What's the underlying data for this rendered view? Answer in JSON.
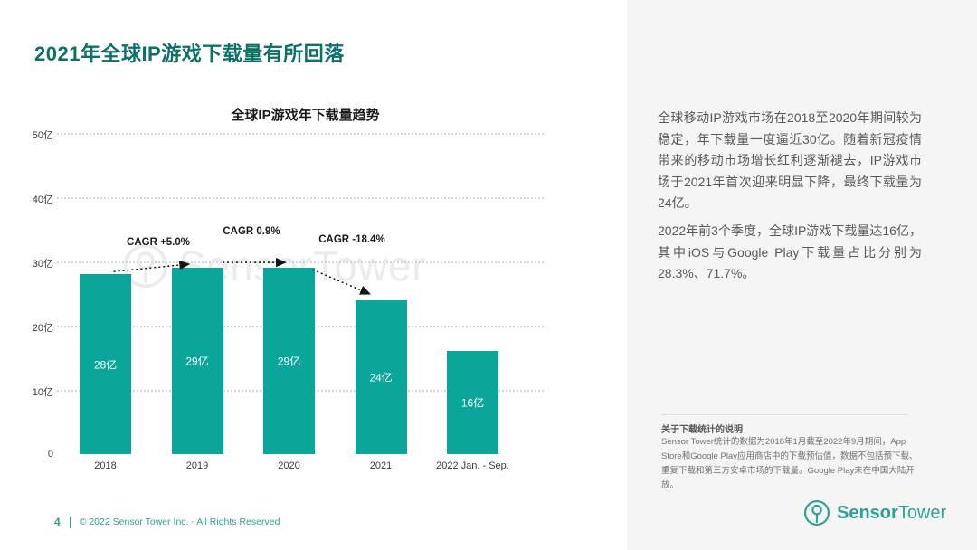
{
  "page": {
    "title": "2021年全球IP游戏下载量有所回落",
    "footer": {
      "page_number": "4",
      "copyright": "© 2022 Sensor Tower Inc. - All Rights Reserved"
    }
  },
  "chart_data": {
    "type": "bar",
    "title": "全球IP游戏年下载量趋势",
    "categories": [
      "2018",
      "2019",
      "2020",
      "2021",
      "2022 Jan. - Sep."
    ],
    "values": [
      28,
      29,
      29,
      24,
      16
    ],
    "bar_labels": [
      "28亿",
      "29亿",
      "29亿",
      "24亿",
      "16亿"
    ],
    "unit": "亿",
    "ylim": [
      0,
      50
    ],
    "ytick_step": 10,
    "ytick_labels": [
      "0",
      "10亿",
      "20亿",
      "30亿",
      "40亿",
      "50亿"
    ],
    "annotations": [
      {
        "label": "CAGR +5.0%",
        "between": [
          "2018",
          "2019"
        ]
      },
      {
        "label": "CAGR 0.9%",
        "between": [
          "2019",
          "2020"
        ]
      },
      {
        "label": "CAGR -18.4%",
        "between": [
          "2020",
          "2021"
        ]
      }
    ],
    "bar_color": "#0aa69a",
    "grid": "horizontal-dotted",
    "legend": "none"
  },
  "watermark": {
    "text": "SensorTower"
  },
  "summary_panel": {
    "paragraphs": [
      "全球移动IP游戏市场在2018至2020年期间较为稳定，年下载量一度逼近30亿。随着新冠疫情带来的移动市场增长红利逐渐褪去，IP游戏市场于2021年首次迎来明显下降，最终下载量为24亿。",
      "2022年前3个季度，全球IP游戏下载量达16亿，其中iOS与Google Play下载量占比分别为28.3%、71.7%。"
    ],
    "note": {
      "title": "关于下载统计的说明",
      "body": "Sensor Tower统计的数据为2018年1月截至2022年9月期间，App Store和Google Play应用商店中的下载预估值，数据不包括预下载、重复下载和第三方安卓市场的下载量。Google Play未在中国大陆开放。"
    },
    "logo": {
      "bold": "Sensor",
      "regular": "Tower"
    }
  },
  "colors": {
    "accent_teal": "#0aa69a",
    "title_teal": "#0d7168",
    "footer_teal": "#2fa296",
    "panel_bg": "#f5f5f6",
    "body_text": "#58595b",
    "watermark_gray": "#ececec"
  }
}
